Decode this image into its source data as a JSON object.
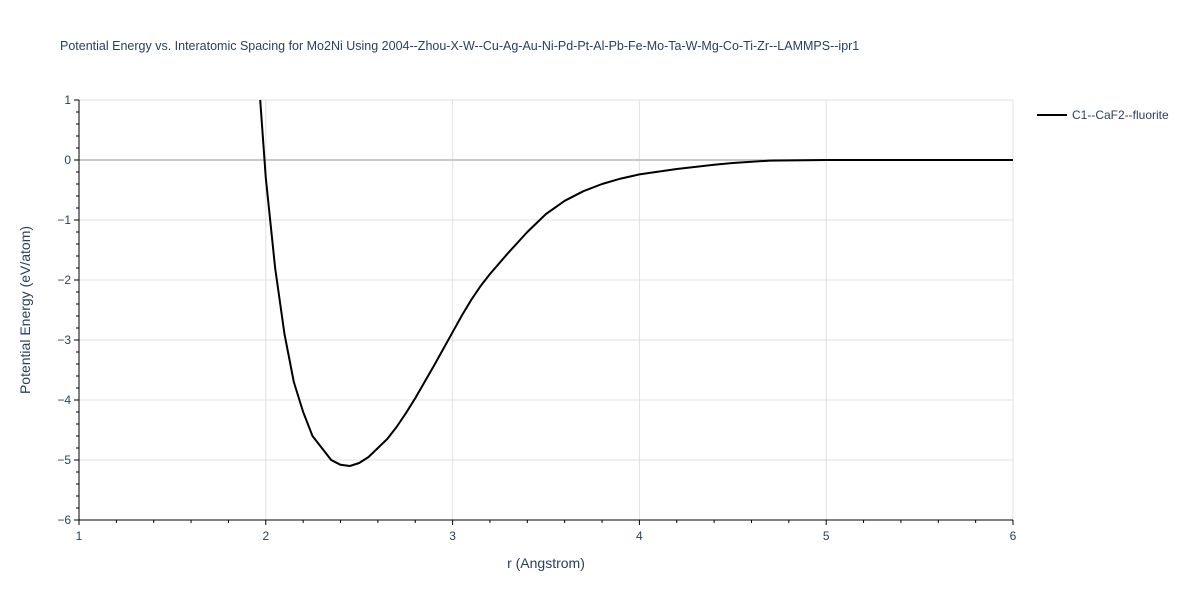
{
  "chart_data": {
    "type": "line",
    "title": "Potential Energy vs. Interatomic Spacing for Mo2Ni Using 2004--Zhou-X-W--Cu-Ag-Au-Ni-Pd-Pt-Al-Pb-Fe-Mo-Ta-W-Mg-Co-Ti-Zr--LAMMPS--ipr1",
    "xlabel": "r (Angstrom)",
    "ylabel": "Potential Energy (eV/atom)",
    "xlim": [
      1,
      6
    ],
    "ylim": [
      -6,
      1
    ],
    "x_ticks": [
      "1",
      "2",
      "3",
      "4",
      "5",
      "6"
    ],
    "y_ticks": [
      "1",
      "0",
      "−1",
      "−2",
      "−3",
      "−4",
      "−5",
      "−6"
    ],
    "grid": true,
    "legend_position": "top-right",
    "series": [
      {
        "name": "C1--CaF2--fluorite",
        "color": "#000000",
        "x": [
          1.97,
          2.0,
          2.05,
          2.1,
          2.15,
          2.2,
          2.25,
          2.3,
          2.35,
          2.4,
          2.45,
          2.5,
          2.55,
          2.6,
          2.65,
          2.7,
          2.75,
          2.8,
          2.85,
          2.9,
          2.95,
          3.0,
          3.05,
          3.1,
          3.15,
          3.2,
          3.3,
          3.4,
          3.5,
          3.6,
          3.7,
          3.8,
          3.9,
          4.0,
          4.2,
          4.4,
          4.5,
          4.7,
          5.0,
          5.5,
          6.0
        ],
        "y": [
          1.0,
          -0.3,
          -1.8,
          -2.9,
          -3.7,
          -4.2,
          -4.6,
          -4.8,
          -5.0,
          -5.08,
          -5.1,
          -5.05,
          -4.95,
          -4.8,
          -4.65,
          -4.45,
          -4.22,
          -3.97,
          -3.7,
          -3.43,
          -3.15,
          -2.87,
          -2.59,
          -2.33,
          -2.1,
          -1.9,
          -1.54,
          -1.2,
          -0.9,
          -0.68,
          -0.52,
          -0.4,
          -0.31,
          -0.24,
          -0.15,
          -0.08,
          -0.05,
          -0.01,
          0.0,
          0.0,
          0.0
        ]
      }
    ]
  }
}
